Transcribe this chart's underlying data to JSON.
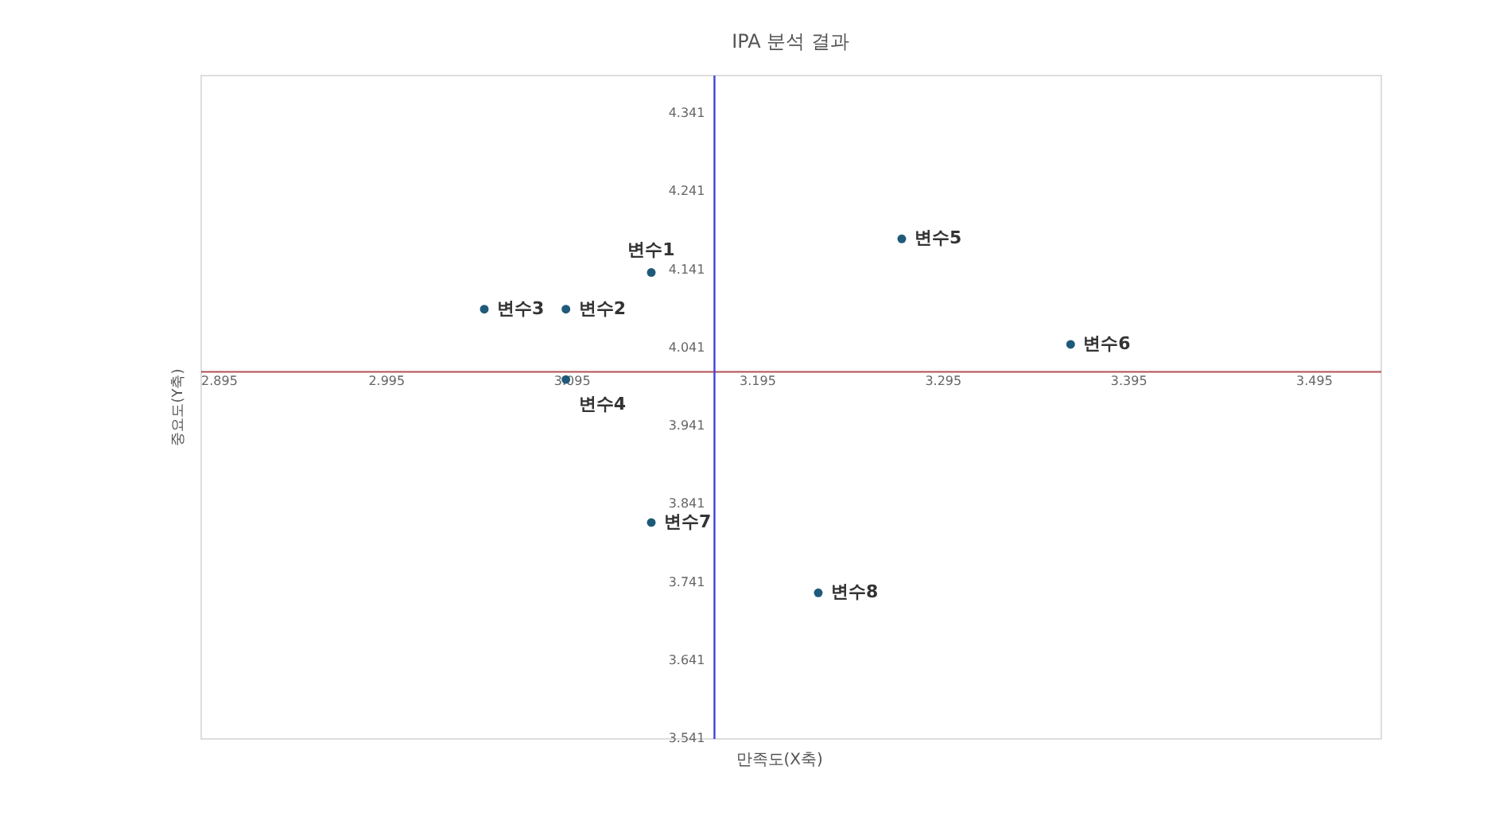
{
  "chart_data": {
    "type": "scatter",
    "title": "IPA 분석 결과",
    "xlabel": "만족도(X축)",
    "ylabel": "중요도(Y축)",
    "series": [
      {
        "name": "변수1",
        "color": "#1f5a7a",
        "x": [
          3.138
        ],
        "values": [
          4.137
        ]
      },
      {
        "name": "변수2",
        "color": "#1f5a7a",
        "x": [
          3.092
        ],
        "values": [
          4.09
        ]
      },
      {
        "name": "변수3",
        "color": "#1f5a7a",
        "x": [
          3.048
        ],
        "values": [
          4.09
        ]
      },
      {
        "name": "변수4",
        "color": "#1f5a7a",
        "x": [
          3.092
        ],
        "values": [
          4.0
        ]
      },
      {
        "name": "변수5",
        "color": "#1f5a7a",
        "x": [
          3.273
        ],
        "values": [
          4.18
        ]
      },
      {
        "name": "변수6",
        "color": "#1f5a7a",
        "x": [
          3.364
        ],
        "values": [
          4.045
        ]
      },
      {
        "name": "변수7",
        "color": "#1f5a7a",
        "x": [
          3.138
        ],
        "values": [
          3.817
        ]
      },
      {
        "name": "변수8",
        "color": "#1f5a7a",
        "x": [
          3.228
        ],
        "values": [
          3.727
        ]
      }
    ],
    "xlim": [
      2.895,
      3.531
    ],
    "xticks": [
      2.895,
      2.995,
      3.095,
      3.195,
      3.295,
      3.395,
      3.495
    ],
    "ylim": [
      3.541,
      4.39
    ],
    "yticks": [
      3.541,
      3.641,
      3.741,
      3.841,
      3.941,
      4.041,
      4.141,
      4.241,
      4.341
    ],
    "grid": false,
    "marker": "circle"
  }
}
